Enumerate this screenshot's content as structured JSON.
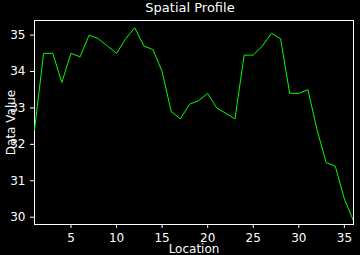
{
  "chart_data": {
    "type": "line",
    "title": "Spatial Profile",
    "x_label": "Location",
    "y_label": "Data Value",
    "x": [
      1,
      2,
      3,
      4,
      5,
      6,
      7,
      8,
      9,
      10,
      11,
      12,
      13,
      14,
      15,
      16,
      17,
      18,
      19,
      20,
      21,
      22,
      23,
      24,
      25,
      26,
      27,
      28,
      29,
      30,
      31,
      32,
      33,
      34,
      35,
      36
    ],
    "values": [
      32.4,
      34.5,
      34.5,
      33.7,
      34.5,
      34.4,
      35.0,
      34.9,
      34.7,
      34.5,
      34.9,
      35.2,
      34.7,
      34.6,
      34.0,
      32.9,
      32.7,
      33.1,
      33.2,
      33.4,
      33.0,
      32.85,
      32.7,
      34.45,
      34.45,
      34.7,
      35.05,
      34.9,
      33.4,
      33.4,
      33.5,
      32.4,
      31.5,
      31.4,
      30.5,
      29.9
    ],
    "color": "#00ff00",
    "xlim": [
      1,
      36
    ],
    "xticks": [
      5,
      10,
      15,
      20,
      25,
      30,
      35
    ],
    "ylim": [
      29.8,
      35.4
    ],
    "yticks": [
      30,
      31,
      32,
      33,
      34,
      35
    ],
    "grid": false
  }
}
